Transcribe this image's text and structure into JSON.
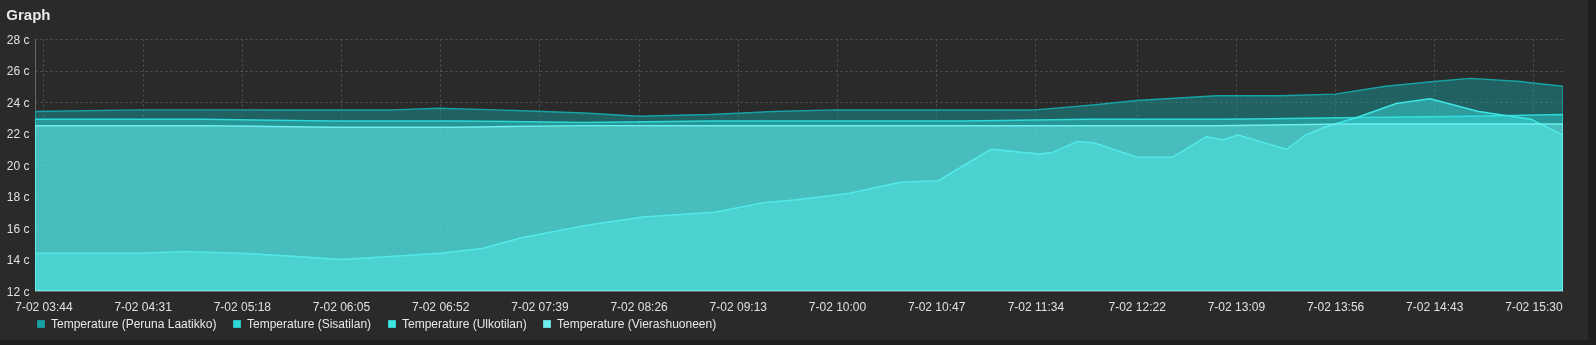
{
  "chart_data": {
    "type": "area",
    "title": "Graph",
    "legend": "bottom",
    "grid": true,
    "xlim": [
      "--07-02T03:40",
      "--07-02T15:44"
    ],
    "xticks": [
      {
        "value": "--07-02T03:44",
        "label": "7-02 03:44"
      },
      {
        "value": "--07-02T04:31",
        "label": "7-02 04:31"
      },
      {
        "value": "--07-02T05:18",
        "label": "7-02 05:18"
      },
      {
        "value": "--07-02T06:05",
        "label": "7-02 06:05"
      },
      {
        "value": "--07-02T06:52",
        "label": "7-02 06:52"
      },
      {
        "value": "--07-02T07:39",
        "label": "7-02 07:39"
      },
      {
        "value": "--07-02T08:26",
        "label": "7-02 08:26"
      },
      {
        "value": "--07-02T09:13",
        "label": "7-02 09:13"
      },
      {
        "value": "--07-02T10:00",
        "label": "7-02 10:00"
      },
      {
        "value": "--07-02T10:47",
        "label": "7-02 10:47"
      },
      {
        "value": "--07-02T11:34",
        "label": "7-02 11:34"
      },
      {
        "value": "--07-02T12:22",
        "label": "7-02 12:22"
      },
      {
        "value": "--07-02T13:09",
        "label": "7-02 13:09"
      },
      {
        "value": "--07-02T13:56",
        "label": "7-02 13:56"
      },
      {
        "value": "--07-02T14:43",
        "label": "7-02 14:43"
      },
      {
        "value": "--07-02T15:30",
        "label": "7-02 15:30"
      }
    ],
    "ylim": [
      12,
      28
    ],
    "yticks": [
      {
        "value": 12,
        "label": "12 c"
      },
      {
        "value": 14,
        "label": "14 c"
      },
      {
        "value": 16,
        "label": "16 c"
      },
      {
        "value": 18,
        "label": "18 c"
      },
      {
        "value": 20,
        "label": "20 c"
      },
      {
        "value": 22,
        "label": "22 c"
      },
      {
        "value": 24,
        "label": "24 c"
      },
      {
        "value": 26,
        "label": "26 c"
      },
      {
        "value": 28,
        "label": "28 c"
      }
    ],
    "series": [
      {
        "name": "Temperature (Peruna Laatikko)",
        "color": "#17a3a5",
        "x": [
          "--07-02T03:40",
          "--07-02T04:30",
          "--07-02T05:30",
          "--07-02T06:30",
          "--07-02T06:51",
          "--07-02T07:18",
          "--07-02T08:00",
          "--07-02T08:26",
          "--07-02T09:00",
          "--07-02T09:30",
          "--07-02T10:00",
          "--07-02T11:00",
          "--07-02T11:34",
          "--07-02T12:00",
          "--07-02T12:22",
          "--07-02T13:00",
          "--07-02T13:30",
          "--07-02T13:56",
          "--07-02T14:20",
          "--07-02T14:43",
          "--07-02T15:00",
          "--07-02T15:24",
          "--07-02T15:44"
        ],
        "values": [
          23.4,
          23.5,
          23.5,
          23.5,
          23.6,
          23.5,
          23.3,
          23.1,
          23.2,
          23.4,
          23.5,
          23.5,
          23.5,
          23.8,
          24.1,
          24.4,
          24.4,
          24.5,
          25.0,
          25.3,
          25.5,
          25.3,
          25.0
        ]
      },
      {
        "name": "Temperature (Sisatilan)",
        "color": "#2ed8d8",
        "x": [
          "--07-02T03:40",
          "--07-02T05:00",
          "--07-02T06:00",
          "--07-02T07:00",
          "--07-02T08:00",
          "--07-02T09:00",
          "--07-02T10:00",
          "--07-02T11:00",
          "--07-02T12:00",
          "--07-02T13:00",
          "--07-02T14:00",
          "--07-02T15:00",
          "--07-02T15:44"
        ],
        "values": [
          22.9,
          22.9,
          22.8,
          22.8,
          22.7,
          22.8,
          22.8,
          22.8,
          22.9,
          22.9,
          23.0,
          23.1,
          23.2
        ]
      },
      {
        "name": "Temperature (Ulkotilan)",
        "color": "#3ee6e6",
        "x": [
          "--07-02T03:40",
          "--07-02T04:30",
          "--07-02T04:51",
          "--07-02T05:18",
          "--07-02T05:42",
          "--07-02T06:05",
          "--07-02T06:30",
          "--07-02T06:52",
          "--07-02T07:12",
          "--07-02T07:31",
          "--07-02T08:03",
          "--07-02T08:28",
          "--07-02T09:02",
          "--07-02T09:25",
          "--07-02T09:41",
          "--07-02T10:06",
          "--07-02T10:30",
          "--07-02T10:48",
          "--07-02T11:13",
          "--07-02T11:36",
          "--07-02T11:42",
          "--07-02T11:54",
          "--07-02T12:02",
          "--07-02T12:22",
          "--07-02T12:39",
          "--07-02T12:55",
          "--07-02T13:03",
          "--07-02T13:10",
          "--07-02T13:33",
          "--07-02T13:42",
          "--07-02T13:51",
          "--07-02T14:08",
          "--07-02T14:25",
          "--07-02T14:41",
          "--07-02T15:04",
          "--07-02T15:29",
          "--07-02T15:44"
        ],
        "values": [
          14.4,
          14.4,
          14.5,
          14.4,
          14.2,
          14.0,
          14.2,
          14.4,
          14.7,
          15.4,
          16.2,
          16.7,
          17.0,
          17.6,
          17.8,
          18.2,
          18.9,
          19.0,
          21.0,
          20.7,
          20.8,
          21.5,
          21.4,
          20.5,
          20.5,
          21.8,
          21.6,
          21.9,
          21.0,
          21.9,
          22.4,
          23.1,
          23.9,
          24.2,
          23.4,
          22.9,
          21.9
        ]
      },
      {
        "name": "Temperature (Vierashuoneen)",
        "color": "#6eeeee",
        "x": [
          "--07-02T03:40",
          "--07-02T05:00",
          "--07-02T06:00",
          "--07-02T07:00",
          "--07-02T08:00",
          "--07-02T09:00",
          "--07-02T10:00",
          "--07-02T11:00",
          "--07-02T12:00",
          "--07-02T13:00",
          "--07-02T14:00",
          "--07-02T15:00",
          "--07-02T15:44"
        ],
        "values": [
          22.5,
          22.5,
          22.4,
          22.4,
          22.5,
          22.5,
          22.5,
          22.5,
          22.5,
          22.5,
          22.6,
          22.6,
          22.6
        ]
      }
    ]
  }
}
